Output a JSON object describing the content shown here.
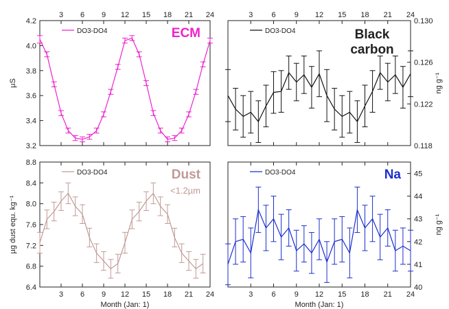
{
  "chart_data": [
    {
      "id": "ecm",
      "type": "line",
      "panel_label": "ECM",
      "label_color": "#ee22cc",
      "series": [
        {
          "name": "DO3-DO4",
          "color": "#ee22cc",
          "x": [
            0,
            1,
            2,
            3,
            4,
            5,
            6,
            7,
            8,
            9,
            10,
            11,
            12,
            13,
            14,
            15,
            16,
            17,
            18,
            19,
            20,
            21,
            22,
            23,
            24
          ],
          "y": [
            4.05,
            3.93,
            3.69,
            3.46,
            3.32,
            3.26,
            3.25,
            3.27,
            3.32,
            3.45,
            3.63,
            3.83,
            4.04,
            4.06,
            3.93,
            3.7,
            3.46,
            3.32,
            3.25,
            3.26,
            3.32,
            3.45,
            3.63,
            3.85,
            4.04
          ],
          "err": [
            0.03,
            0.02,
            0.02,
            0.02,
            0.02,
            0.02,
            0.02,
            0.02,
            0.02,
            0.02,
            0.02,
            0.02,
            0.02,
            0.02,
            0.02,
            0.02,
            0.02,
            0.02,
            0.02,
            0.02,
            0.02,
            0.02,
            0.02,
            0.02,
            0.02
          ]
        }
      ],
      "ylabel": "µS",
      "y_axis_side": "left",
      "ylim": [
        3.2,
        4.2
      ],
      "yticks": [
        3.2,
        3.4,
        3.6,
        3.8,
        4.0,
        4.2
      ],
      "ytick_labels": [
        "3.2",
        "3.4",
        "3.6",
        "3.8",
        "4.0",
        "4.2"
      ],
      "xlim": [
        0,
        24
      ],
      "xticks": [
        3,
        6,
        9,
        12,
        15,
        18,
        21,
        24
      ],
      "top_tick_labels": [
        "3",
        "6",
        "9",
        "12",
        "15",
        "18",
        "21",
        "24"
      ],
      "bottom_tick_labels": [],
      "xlabel": "",
      "legend_position": "top-left",
      "grid": false
    },
    {
      "id": "bc",
      "type": "line",
      "panel_label": "Black carbon",
      "panel_label_lines": [
        "Black",
        "carbon"
      ],
      "label_color": "#222222",
      "series": [
        {
          "name": "DO3-DO4",
          "color": "#111111",
          "x": [
            0,
            1,
            2,
            3,
            4,
            5,
            6,
            7,
            8,
            9,
            10,
            11,
            12,
            13,
            14,
            15,
            16,
            17,
            18,
            19,
            20,
            21,
            22,
            23,
            24
          ],
          "y": [
            0.1228,
            0.1215,
            0.1208,
            0.1212,
            0.1203,
            0.1218,
            0.1231,
            0.1232,
            0.125,
            0.1241,
            0.1248,
            0.1236,
            0.1249,
            0.1228,
            0.1215,
            0.1208,
            0.1212,
            0.1203,
            0.1218,
            0.1232,
            0.125,
            0.1241,
            0.1248,
            0.1236,
            0.1249
          ],
          "err": [
            0.0025,
            0.002,
            0.002,
            0.002,
            0.002,
            0.002,
            0.002,
            0.002,
            0.0016,
            0.0018,
            0.0018,
            0.002,
            0.0022,
            0.0025,
            0.002,
            0.002,
            0.002,
            0.002,
            0.002,
            0.002,
            0.0016,
            0.0018,
            0.0018,
            0.002,
            0.0022
          ]
        }
      ],
      "ylabel": "ng g⁻¹",
      "y_axis_side": "right",
      "ylim": [
        0.118,
        0.13
      ],
      "yticks": [
        0.118,
        0.122,
        0.126,
        0.13
      ],
      "ytick_labels": [
        "0.118",
        "0.122",
        "0.126",
        "0.130"
      ],
      "xlim": [
        0,
        24
      ],
      "xticks": [
        3,
        6,
        9,
        12,
        15,
        18,
        21,
        24
      ],
      "top_tick_labels": [
        "3",
        "6",
        "9",
        "12",
        "15",
        "18",
        "21",
        "24"
      ],
      "bottom_tick_labels": [],
      "xlabel": "",
      "legend_position": "top-left",
      "grid": false
    },
    {
      "id": "dust",
      "type": "line",
      "panel_label": "Dust",
      "panel_sublabel": "<1.2µm",
      "label_color": "#c09a96",
      "series": [
        {
          "name": "DO3-DO4",
          "color": "#c09a96",
          "x": [
            0,
            1,
            2,
            3,
            4,
            5,
            6,
            7,
            8,
            9,
            10,
            11,
            12,
            13,
            14,
            15,
            16,
            17,
            18,
            19,
            20,
            21,
            22,
            23
          ],
          "y": [
            7.25,
            7.7,
            7.85,
            8.05,
            8.2,
            7.95,
            7.8,
            7.35,
            7.05,
            6.9,
            6.75,
            6.85,
            7.25,
            7.7,
            7.85,
            8.05,
            8.2,
            7.95,
            7.8,
            7.35,
            7.05,
            6.9,
            6.75,
            6.85
          ],
          "err": [
            0.2,
            0.18,
            0.18,
            0.18,
            0.2,
            0.18,
            0.18,
            0.18,
            0.18,
            0.18,
            0.18,
            0.18,
            0.2,
            0.18,
            0.18,
            0.18,
            0.2,
            0.18,
            0.18,
            0.18,
            0.18,
            0.18,
            0.18,
            0.18
          ]
        }
      ],
      "ylabel": "µg dust equ. kg⁻¹",
      "y_axis_side": "left",
      "ylim": [
        6.4,
        8.8
      ],
      "yticks": [
        6.4,
        6.8,
        7.2,
        7.6,
        8.0,
        8.4,
        8.8
      ],
      "ytick_labels": [
        "6.4",
        "6.8",
        "7.2",
        "7.6",
        "8.0",
        "8.4",
        "8.8"
      ],
      "xlim": [
        0,
        24
      ],
      "xticks": [
        3,
        6,
        9,
        12,
        15,
        18,
        21,
        24
      ],
      "top_tick_labels": [],
      "bottom_tick_labels": [
        "3",
        "6",
        "9",
        "12",
        "15",
        "18",
        "21",
        "24"
      ],
      "xlabel": "Month (Jan: 1)",
      "legend_position": "top-left",
      "grid": false
    },
    {
      "id": "na",
      "type": "line",
      "panel_label": "Na",
      "label_color": "#1a2ecc",
      "series": [
        {
          "name": "DO3-DO4",
          "color": "#1a2ecc",
          "x": [
            0,
            1,
            2,
            3,
            4,
            5,
            6,
            7,
            8,
            9,
            10,
            11,
            12,
            13,
            14,
            15,
            16,
            17,
            18,
            19,
            20,
            21,
            22,
            23,
            24
          ],
          "y": [
            41.0,
            42.0,
            42.1,
            41.5,
            43.4,
            42.6,
            43.0,
            42.2,
            42.6,
            41.6,
            41.9,
            41.5,
            42.1,
            41.1,
            42.0,
            42.1,
            41.5,
            43.4,
            42.6,
            43.0,
            42.2,
            42.6,
            41.6,
            41.8,
            41.6
          ],
          "err": [
            0.9,
            1.0,
            1.0,
            1.1,
            1.0,
            1.0,
            1.0,
            1.0,
            0.8,
            0.9,
            0.8,
            0.9,
            0.9,
            0.9,
            1.0,
            1.0,
            1.1,
            1.0,
            1.0,
            1.0,
            1.0,
            0.8,
            0.9,
            0.8,
            0.9
          ]
        }
      ],
      "ylabel": "ng g⁻¹",
      "y_axis_side": "right",
      "ylim": [
        40,
        45.5
      ],
      "yticks": [
        40,
        41,
        42,
        43,
        44,
        45
      ],
      "ytick_labels": [
        "40",
        "41",
        "42",
        "43",
        "44",
        "45"
      ],
      "xlim": [
        0,
        24
      ],
      "xticks": [
        3,
        6,
        9,
        12,
        15,
        18,
        21,
        24
      ],
      "top_tick_labels": [],
      "bottom_tick_labels": [
        "3",
        "6",
        "9",
        "12",
        "15",
        "18",
        "21",
        "24"
      ],
      "xlabel": "Month (Jan: 1)",
      "legend_position": "top-left",
      "grid": false
    }
  ]
}
